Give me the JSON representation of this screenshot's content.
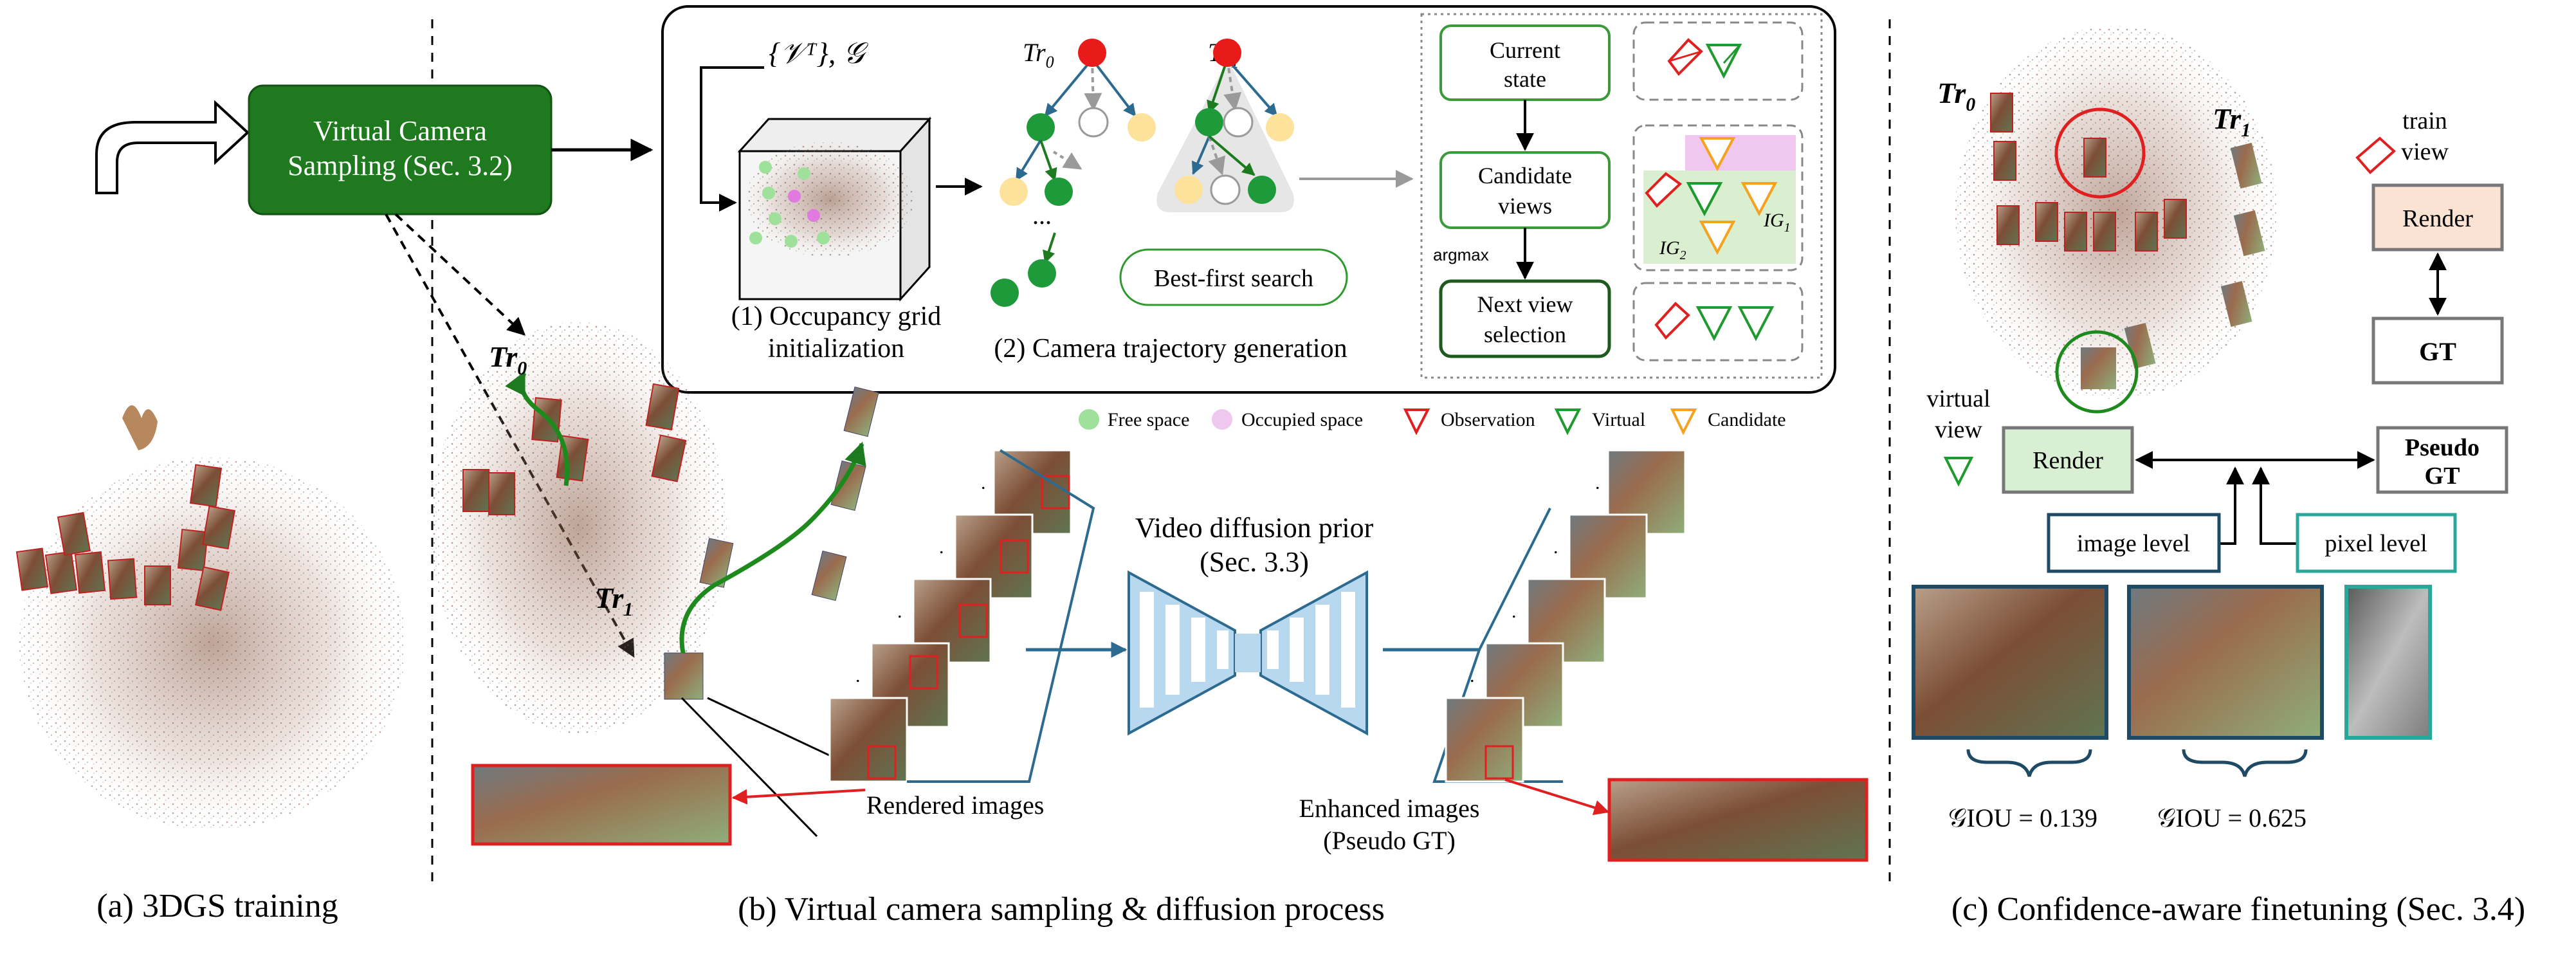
{
  "panel_a": {
    "caption": "(a) 3DGS training",
    "sampling_box_line1": "Virtual Camera",
    "sampling_box_line2": "Sampling (Sec. 3.2)"
  },
  "panel_b": {
    "caption": "(b) Virtual camera sampling & diffusion process",
    "inputs_label": "{𝒱ᵀ}, 𝒢",
    "occupancy_line1": "(1) Occupancy grid",
    "occupancy_line2": "initialization",
    "trajectory_label": "(2) Camera trajectory generation",
    "tree0_label": "Tr",
    "tree0_sub": "0",
    "tree1_label": "Tr",
    "tree1_sub": "1",
    "ellipsis": "...",
    "search_label": "Best-first search",
    "flow": {
      "current_line1": "Current",
      "current_line2": "state",
      "candidate_line1": "Candidate",
      "candidate_line2": "views",
      "argmax": "argmax",
      "next_line1": "Next view",
      "next_line2": "selection",
      "ig1": "IG",
      "ig1_sub": "1",
      "ig2": "IG",
      "ig2_sub": "2"
    },
    "legend": {
      "free": "Free space",
      "occupied": "Occupied space",
      "observation": "Observation",
      "virtual": "Virtual",
      "candidate": "Candidate"
    },
    "traj0": "Tr",
    "traj0_sub": "0",
    "traj1": "Tr",
    "traj1_sub": "1",
    "diffusion_line1": "Video diffusion prior",
    "diffusion_line2": "(Sec. 3.3)",
    "rendered_label": "Rendered images",
    "enhanced_line1": "Enhanced images",
    "enhanced_line2": "(Pseudo GT)"
  },
  "panel_c": {
    "caption": "(c) Confidence-aware finetuning (Sec. 3.4)",
    "tr0": "Tr",
    "tr0_sub": "0",
    "tr1": "Tr",
    "tr1_sub": "1",
    "train_view_line1": "train",
    "train_view_line2": "view",
    "render_top": "Render",
    "gt": "GT",
    "virtual_view_line1": "virtual",
    "virtual_view_line2": "view",
    "render_bottom": "Render",
    "pseudo_line1": "Pseudo",
    "pseudo_line2": "GT",
    "image_level": "image level",
    "pixel_level": "pixel level",
    "giou1": "𝒢IOU = 0.139",
    "giou2": "𝒢IOU = 0.625"
  },
  "colors": {
    "dark_green": "#1e7a1e",
    "green": "#2e9a2e",
    "red": "#e02020",
    "orange": "#f4a21f",
    "blue": "#2c6a8f",
    "teal": "#2aa79b",
    "navy": "#1f4a66",
    "render_top_fill": "#fbe3d4",
    "render_bottom_fill": "#d9efd3",
    "pink": "#f0c8ef"
  }
}
